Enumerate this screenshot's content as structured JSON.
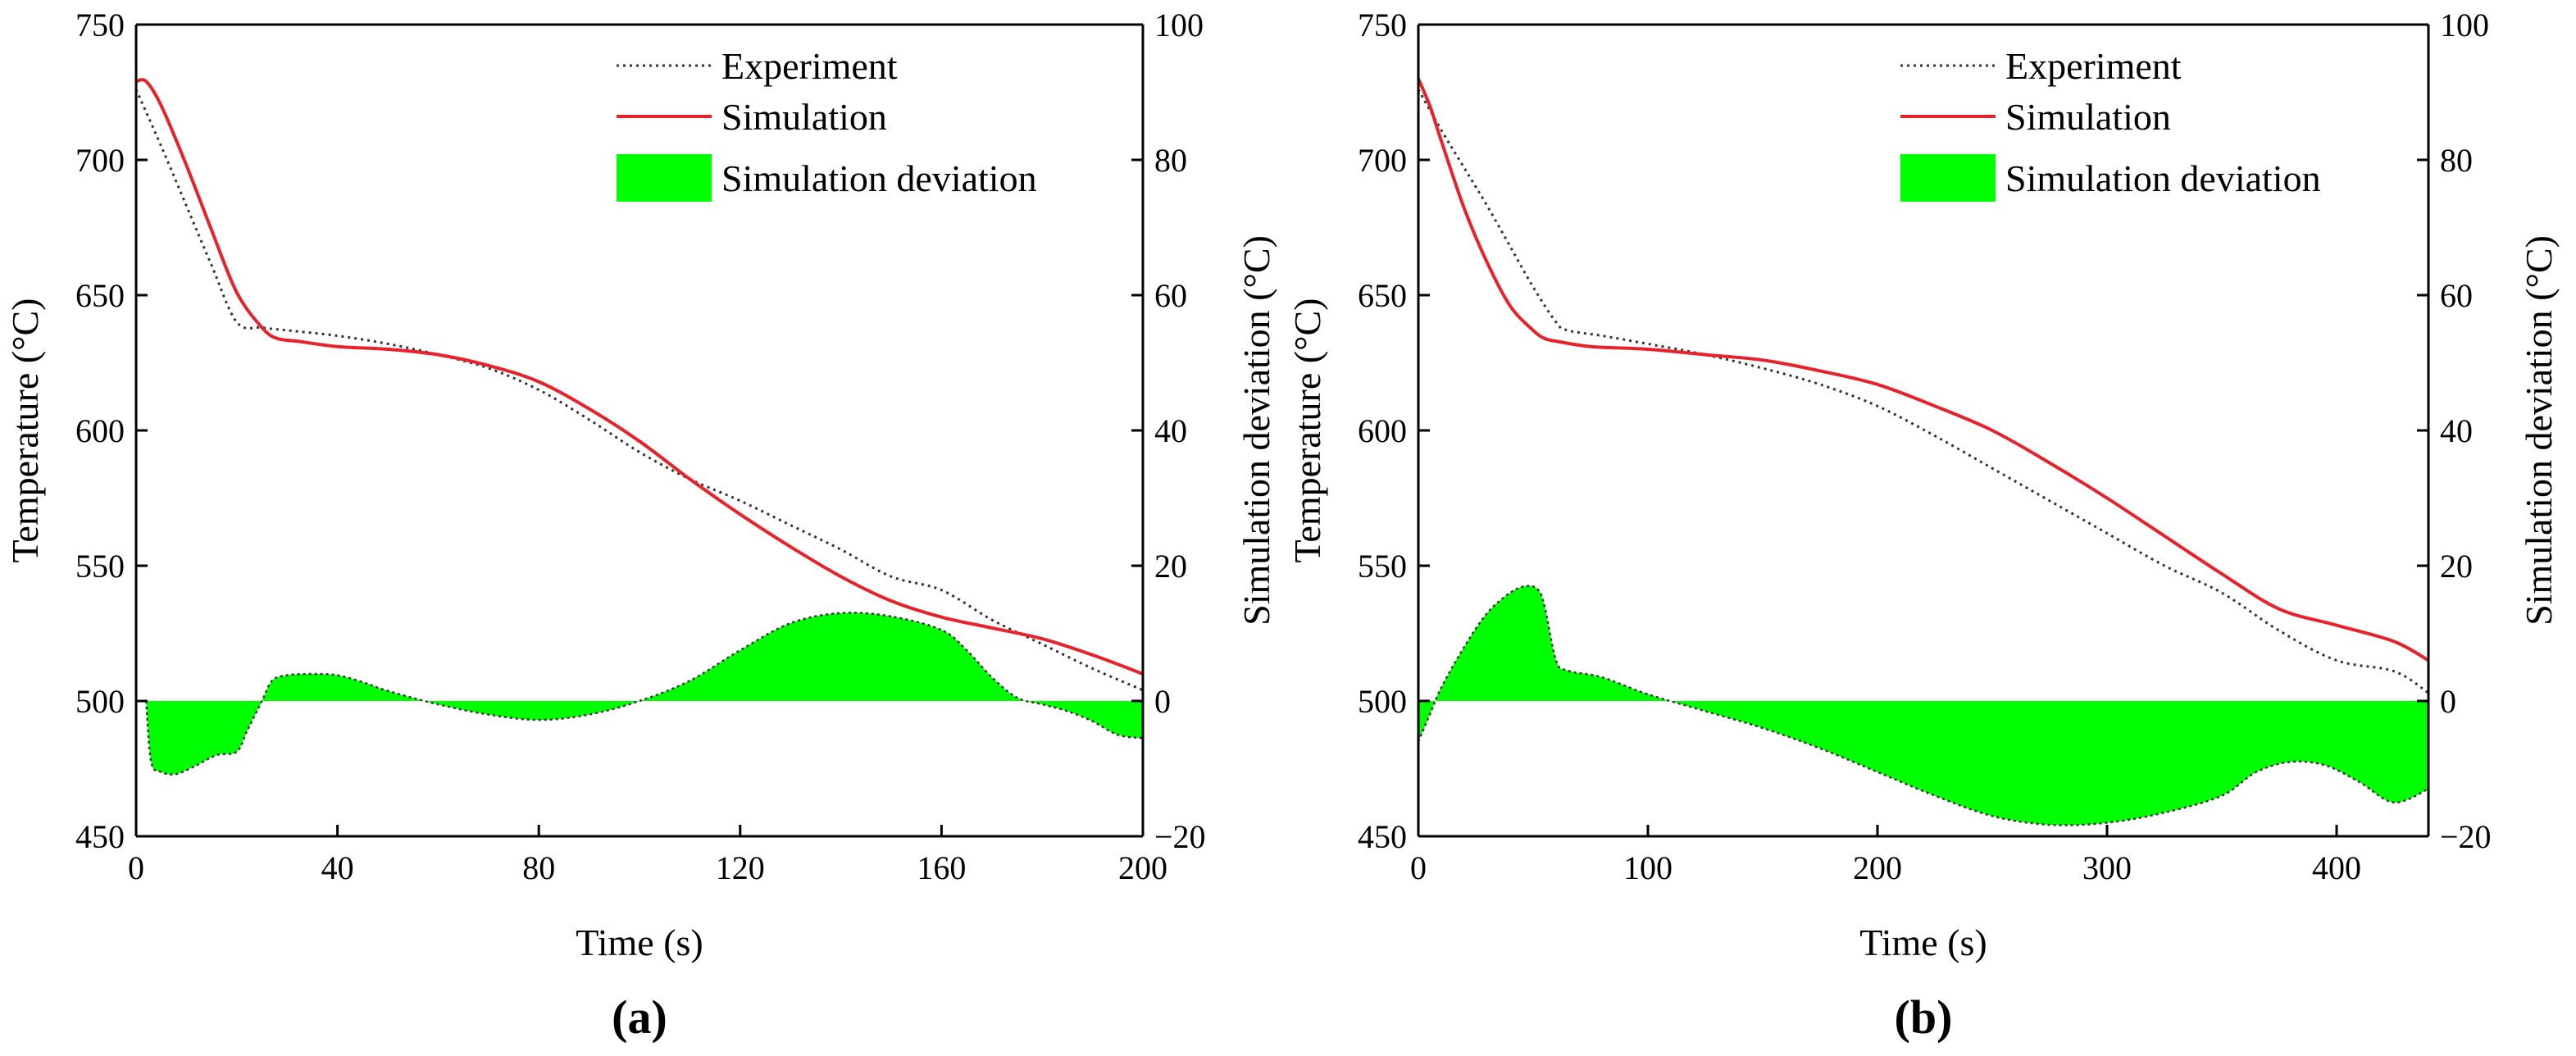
{
  "figure": {
    "legend_labels": {
      "experiment": "Experiment",
      "simulation": "Simulation",
      "deviation": "Simulation deviation"
    },
    "colors": {
      "experiment": "#333333",
      "simulation": "#e8212a",
      "deviation": "#00ff00"
    }
  },
  "chart_data": [
    {
      "type": "line",
      "panel_label": "(a)",
      "title": "",
      "xlabel": "Time (s)",
      "ylabel": "Temperature (°C)",
      "y2label": "Simulation deviation (°C)",
      "xlim": [
        0,
        200
      ],
      "ylim": [
        450,
        750
      ],
      "y2lim": [
        -20,
        100
      ],
      "xticks": [
        0,
        40,
        80,
        120,
        160,
        200
      ],
      "yticks": [
        450,
        500,
        550,
        600,
        650,
        700,
        750
      ],
      "y2ticks": [
        -20,
        0,
        20,
        40,
        60,
        80,
        100
      ],
      "legend_position": "top-right",
      "grid": false,
      "series": [
        {
          "name": "Experiment",
          "axis": "left",
          "style": "dotted",
          "x": [
            0,
            5,
            10,
            15,
            20,
            25,
            30,
            40,
            50,
            60,
            70,
            80,
            90,
            100,
            110,
            120,
            130,
            140,
            150,
            160,
            170,
            180,
            190,
            200
          ],
          "y": [
            726,
            705,
            683,
            661,
            640,
            638,
            637,
            635,
            632,
            628,
            623,
            615,
            604,
            592,
            582,
            574,
            565,
            556,
            546,
            541,
            530,
            521,
            512,
            504
          ]
        },
        {
          "name": "Simulation",
          "axis": "left",
          "style": "solid",
          "x": [
            0,
            2,
            5,
            10,
            15,
            20,
            25,
            28,
            32,
            40,
            50,
            60,
            70,
            80,
            90,
            100,
            110,
            120,
            130,
            140,
            150,
            160,
            170,
            180,
            190,
            200
          ],
          "y": [
            729,
            729,
            720,
            698,
            674,
            651,
            638,
            634,
            633,
            631,
            630,
            628,
            624,
            618,
            608,
            596,
            582,
            569,
            557,
            546,
            537,
            531,
            527,
            523,
            517,
            510
          ]
        },
        {
          "name": "Simulation deviation",
          "axis": "right",
          "style": "area",
          "x": [
            2,
            3,
            5,
            8,
            12,
            16,
            20,
            22,
            25,
            27,
            30,
            35,
            40,
            45,
            50,
            60,
            70,
            80,
            90,
            100,
            110,
            120,
            130,
            140,
            150,
            160,
            165,
            170,
            175,
            180,
            185,
            190,
            195,
            200
          ],
          "y": [
            0,
            -9,
            -10.5,
            -10.8,
            -9.5,
            -8,
            -7.5,
            -4.5,
            0,
            3,
            3.8,
            4,
            3.8,
            2.8,
            1.5,
            -0.5,
            -2,
            -2.8,
            -2,
            0,
            3,
            7.5,
            11.5,
            13,
            12.5,
            10.5,
            7.5,
            3.5,
            0.5,
            -0.5,
            -1.5,
            -3,
            -5,
            -5.5
          ]
        }
      ]
    },
    {
      "type": "line",
      "panel_label": "(b)",
      "title": "",
      "xlabel": "Time (s)",
      "ylabel": "Temperature (°C)",
      "y2label": "Simulation deviation (°C)",
      "xlim": [
        0,
        440
      ],
      "ylim": [
        450,
        750
      ],
      "y2lim": [
        -20,
        100
      ],
      "xticks": [
        0,
        100,
        200,
        300,
        400
      ],
      "yticks": [
        450,
        500,
        550,
        600,
        650,
        700,
        750
      ],
      "y2ticks": [
        -20,
        0,
        20,
        40,
        60,
        80,
        100
      ],
      "legend_position": "top-right",
      "grid": false,
      "series": [
        {
          "name": "Experiment",
          "axis": "left",
          "style": "dotted",
          "x": [
            0,
            10,
            20,
            30,
            40,
            50,
            60,
            65,
            80,
            100,
            125,
            150,
            175,
            200,
            225,
            250,
            275,
            300,
            325,
            350,
            375,
            400,
            425,
            440
          ],
          "y": [
            726,
            711,
            697,
            683,
            668,
            653,
            640,
            637,
            635,
            632,
            628,
            623,
            617,
            609,
            598,
            586,
            574,
            562,
            550,
            540,
            526,
            515,
            511,
            503
          ]
        },
        {
          "name": "Simulation",
          "axis": "left",
          "style": "solid",
          "x": [
            0,
            5,
            10,
            20,
            30,
            40,
            50,
            55,
            60,
            75,
            100,
            125,
            150,
            175,
            200,
            225,
            250,
            275,
            300,
            325,
            350,
            375,
            400,
            425,
            440
          ],
          "y": [
            730,
            720,
            707,
            682,
            662,
            646,
            637,
            634,
            633,
            631,
            630,
            628,
            626,
            622,
            617,
            609,
            600,
            588,
            575,
            561,
            547,
            534,
            528,
            522,
            515
          ]
        },
        {
          "name": "Simulation deviation",
          "axis": "right",
          "style": "area",
          "x": [
            0,
            5,
            10,
            20,
            30,
            40,
            47,
            52,
            55,
            60,
            65,
            80,
            100,
            125,
            150,
            175,
            200,
            225,
            250,
            275,
            300,
            325,
            350,
            365,
            380,
            395,
            410,
            425,
            440
          ],
          "y": [
            -6,
            -2,
            2,
            8,
            13,
            16,
            17,
            16.5,
            14,
            6,
            4.5,
            3.5,
            1,
            -1.5,
            -4,
            -7,
            -10.5,
            -14,
            -17,
            -18.3,
            -18,
            -16.5,
            -14,
            -10.5,
            -9,
            -9.5,
            -12,
            -15,
            -13
          ]
        }
      ]
    }
  ]
}
